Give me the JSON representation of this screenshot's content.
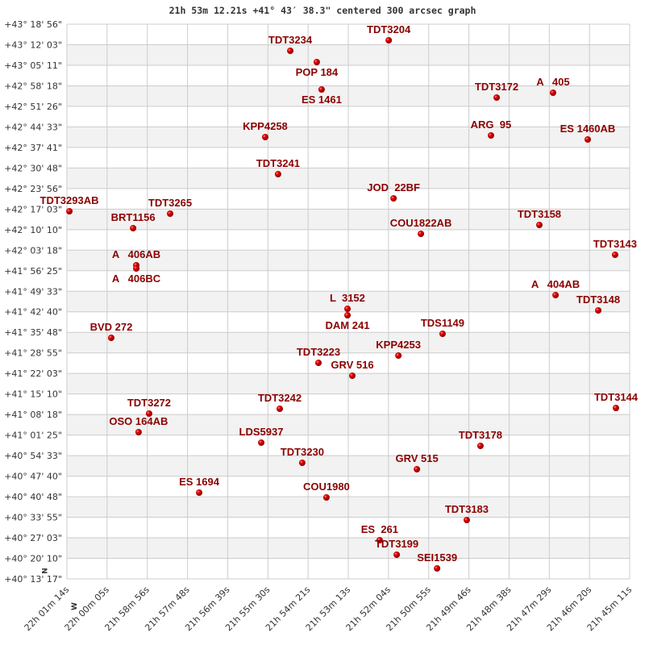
{
  "chart_data": {
    "type": "scatter",
    "title": "21h 53m 12.21s +41° 43′ 38.3\" centered 300 arcsec graph",
    "x_axis": {
      "quantity": "right ascension (hours)",
      "range": [
        22.02056,
        21.75306
      ],
      "reversed": true,
      "tick_labels": [
        "22h 01m 14s",
        "22h 00m 05s",
        "21h 58m 56s",
        "21h 57m 48s",
        "21h 56m 39s",
        "21h 55m 30s",
        "21h 54m 21s",
        "21h 53m 13s",
        "21h 52m 04s",
        "21h 50m 55s",
        "21h 49m 46s",
        "21h 48m 38s",
        "21h 47m 29s",
        "21h 46m 20s",
        "21h 45m 11s"
      ]
    },
    "y_axis": {
      "quantity": "declination (degrees)",
      "range": [
        40.22139,
        43.31556
      ],
      "tick_labels": [
        "+43° 18' 56\"",
        "+43° 12' 03\"",
        "+43° 05' 11\"",
        "+42° 58' 18\"",
        "+42° 51' 26\"",
        "+42° 44' 33\"",
        "+42° 37' 41\"",
        "+42° 30' 48\"",
        "+42° 23' 56\"",
        "+42° 17' 03\"",
        "+42° 10' 10\"",
        "+42° 03' 18\"",
        "+41° 56' 25\"",
        "+41° 49' 33\"",
        "+41° 42' 40\"",
        "+41° 35' 48\"",
        "+41° 28' 55\"",
        "+41° 22' 03\"",
        "+41° 15' 10\"",
        "+41° 08' 18\"",
        "+41° 01' 25\"",
        "+40° 54' 33\"",
        "+40° 47' 40\"",
        "+40° 40' 48\"",
        "+40° 33' 55\"",
        "+40° 27' 03\"",
        "+40° 20' 10\"",
        "+40° 13' 17\""
      ]
    },
    "orientation": {
      "north": "N",
      "west": "W"
    },
    "grid": true,
    "alternating_row_bands": true,
    "colors": {
      "point": "#dd0000",
      "label": "#8b0000",
      "band": "#f2f2f2",
      "grid": "#cccccc"
    },
    "points": [
      {
        "name": "TDT3234",
        "ra": 21.9144,
        "dec": 43.1671
      },
      {
        "name": "POP 184",
        "ra": 21.9018,
        "dec": 43.1042
      },
      {
        "name": "TDT3204",
        "ra": 21.8676,
        "dec": 43.2256
      },
      {
        "name": "ES 1461",
        "ra": 21.8995,
        "dec": 42.9513
      },
      {
        "name": "TDT3172",
        "ra": 21.8163,
        "dec": 42.9063
      },
      {
        "name": "A   405",
        "ra": 21.7895,
        "dec": 42.9333
      },
      {
        "name": "KPP4258",
        "ra": 21.9263,
        "dec": 42.6859
      },
      {
        "name": "ARG  95",
        "ra": 21.819,
        "dec": 42.6949
      },
      {
        "name": "ES 1460AB",
        "ra": 21.773,
        "dec": 42.6724
      },
      {
        "name": "TDT3241",
        "ra": 21.9202,
        "dec": 42.4791
      },
      {
        "name": "JOD  22BF",
        "ra": 21.8653,
        "dec": 42.3441
      },
      {
        "name": "TDT3293AB",
        "ra": 22.0194,
        "dec": 42.2722
      },
      {
        "name": "TDT3265",
        "ra": 21.9715,
        "dec": 42.2587
      },
      {
        "name": "BRT1156",
        "ra": 21.9891,
        "dec": 42.1777
      },
      {
        "name": "COU1822AB",
        "ra": 21.8523,
        "dec": 42.1463
      },
      {
        "name": "TDT3158",
        "ra": 21.796,
        "dec": 42.1957
      },
      {
        "name": "TDT3143",
        "ra": 21.76,
        "dec": 42.0293
      },
      {
        "name": "A   406AB",
        "ra": 21.9876,
        "dec": 41.9709
      },
      {
        "name": "A   406BC",
        "ra": 21.9876,
        "dec": 41.9529
      },
      {
        "name": "A   404AB",
        "ra": 21.7883,
        "dec": 41.8045
      },
      {
        "name": "TDT3148",
        "ra": 21.768,
        "dec": 41.719
      },
      {
        "name": "L  3152",
        "ra": 21.8872,
        "dec": 41.728
      },
      {
        "name": "DAM 241",
        "ra": 21.8872,
        "dec": 41.692
      },
      {
        "name": "BVD 272",
        "ra": 21.9995,
        "dec": 41.5661
      },
      {
        "name": "TDS1149",
        "ra": 21.842,
        "dec": 41.5886
      },
      {
        "name": "KPP4253",
        "ra": 21.863,
        "dec": 41.4672
      },
      {
        "name": "TDT3223",
        "ra": 21.901,
        "dec": 41.4267
      },
      {
        "name": "GRV 516",
        "ra": 21.8849,
        "dec": 41.3547
      },
      {
        "name": "TDT3242",
        "ra": 21.9194,
        "dec": 41.1703
      },
      {
        "name": "TDT3272",
        "ra": 21.9815,
        "dec": 41.1434
      },
      {
        "name": "OSO 164AB",
        "ra": 21.9865,
        "dec": 41.0399
      },
      {
        "name": "TDT3144",
        "ra": 21.7596,
        "dec": 41.1748
      },
      {
        "name": "LDS5937",
        "ra": 21.9282,
        "dec": 40.9815
      },
      {
        "name": "TDT3178",
        "ra": 21.824,
        "dec": 40.9635
      },
      {
        "name": "TDT3230",
        "ra": 21.9087,
        "dec": 40.869
      },
      {
        "name": "GRV 515",
        "ra": 21.8542,
        "dec": 40.833
      },
      {
        "name": "ES 1694",
        "ra": 21.9577,
        "dec": 40.7026
      },
      {
        "name": "COU1980",
        "ra": 21.8972,
        "dec": 40.6756
      },
      {
        "name": "TDT3183",
        "ra": 21.8305,
        "dec": 40.5497
      },
      {
        "name": "ES  261",
        "ra": 21.8719,
        "dec": 40.4373
      },
      {
        "name": "TDT3199",
        "ra": 21.8638,
        "dec": 40.3563
      },
      {
        "name": "SEI1539",
        "ra": 21.8446,
        "dec": 40.2799
      }
    ]
  }
}
